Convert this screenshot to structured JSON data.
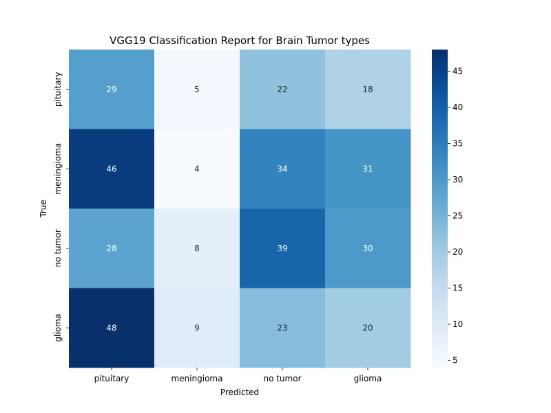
{
  "chart_data": {
    "type": "heatmap",
    "title": "VGG19 Classification Report for Brain Tumor types",
    "xlabel": "Predicted",
    "ylabel": "True",
    "x_categories": [
      "pituitary",
      "meningioma",
      "no tumor",
      "glioma"
    ],
    "y_categories": [
      "pituitary",
      "meningioma",
      "no tumor",
      "glioma"
    ],
    "values": [
      [
        29,
        5,
        22,
        18
      ],
      [
        46,
        4,
        34,
        31
      ],
      [
        28,
        8,
        39,
        30
      ],
      [
        48,
        9,
        23,
        20
      ]
    ],
    "colorbar": {
      "colormap": "Blues",
      "range": [
        4,
        48
      ],
      "ticks": [
        5,
        10,
        15,
        20,
        25,
        30,
        35,
        40,
        45
      ]
    },
    "grid": false
  }
}
